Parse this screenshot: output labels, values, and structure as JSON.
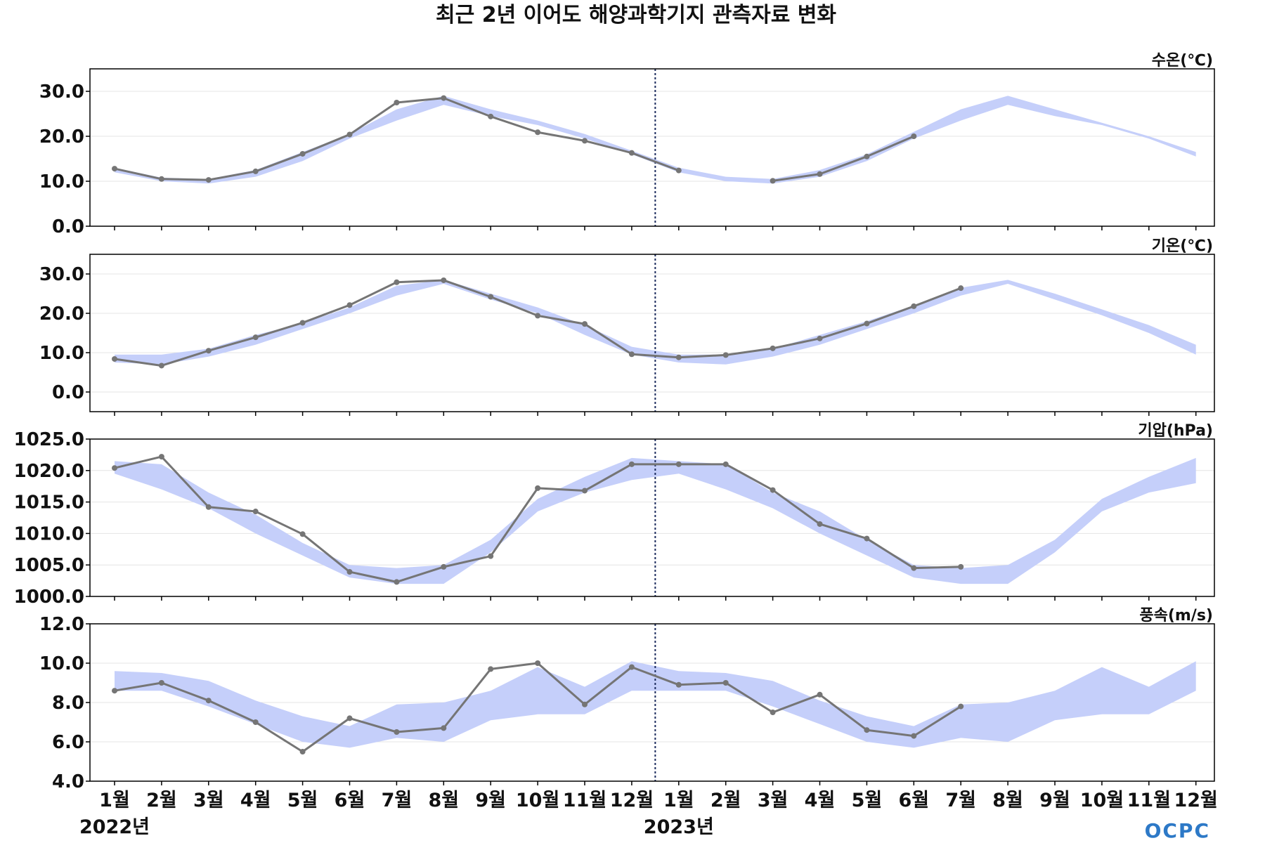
{
  "chart_data": {
    "type": "line",
    "title": "최근 2년 이어도 해양과학기지 관측자료 변화",
    "x": [
      "1월",
      "2월",
      "3월",
      "4월",
      "5월",
      "6월",
      "7월",
      "8월",
      "9월",
      "10월",
      "11월",
      "12월",
      "1월",
      "2월",
      "3월",
      "4월",
      "5월",
      "6월",
      "7월",
      "8월",
      "9월",
      "10월",
      "11월",
      "12월"
    ],
    "years": [
      {
        "label": "2022년",
        "at_index": 0
      },
      {
        "label": "2023년",
        "at_index": 12
      }
    ],
    "divider_between_index": [
      11,
      12
    ],
    "logo": "OCPC",
    "colors": {
      "band": "#c5cffa",
      "line": "#757575",
      "divider": "#1b2a5c",
      "grid": "#e4e4e4"
    },
    "panels": [
      {
        "unit": "수온(℃)",
        "ylim": [
          0,
          35
        ],
        "yticks": [
          0,
          10,
          20,
          30
        ],
        "tick_labels": [
          "0.0",
          "10.0",
          "20.0",
          "30.0"
        ],
        "band_min": [
          12.0,
          10.0,
          9.5,
          11.0,
          14.5,
          19.5,
          23.5,
          27.0,
          24.5,
          22.5,
          19.5,
          16.0,
          12.0,
          10.0,
          9.5,
          11.0,
          14.5,
          19.5,
          23.5,
          27.0,
          24.5,
          22.5,
          19.5,
          15.5
        ],
        "band_max": [
          13.0,
          10.8,
          10.5,
          12.5,
          16.5,
          20.5,
          26.0,
          29.0,
          26.0,
          23.5,
          20.5,
          16.8,
          13.0,
          11.0,
          10.5,
          12.5,
          16.0,
          21.0,
          26.0,
          29.0,
          26.0,
          23.0,
          20.0,
          16.5
        ],
        "observed": [
          12.8,
          10.5,
          10.3,
          12.2,
          16.1,
          20.4,
          27.5,
          28.5,
          24.4,
          20.9,
          19.0,
          16.3,
          12.4,
          null,
          10.1,
          11.6,
          15.5,
          20.0,
          null,
          null,
          null,
          null,
          null,
          null
        ]
      },
      {
        "unit": "기온(℃)",
        "ylim": [
          -5,
          35
        ],
        "yticks": [
          0,
          10,
          20,
          30
        ],
        "tick_labels": [
          "0.0",
          "10.0",
          "20.0",
          "30.0"
        ],
        "band_min": [
          7.5,
          7.0,
          9.0,
          12.0,
          16.0,
          20.0,
          24.5,
          27.5,
          23.5,
          20.0,
          14.5,
          9.5,
          7.5,
          7.0,
          9.0,
          12.0,
          16.0,
          20.0,
          24.5,
          27.5,
          23.5,
          19.5,
          15.0,
          9.5
        ],
        "band_max": [
          9.5,
          9.5,
          11.0,
          14.5,
          17.5,
          21.5,
          27.0,
          28.5,
          25.0,
          21.5,
          17.0,
          11.5,
          9.5,
          9.5,
          11.0,
          14.5,
          18.0,
          22.0,
          26.5,
          28.5,
          25.0,
          21.0,
          17.0,
          12.0
        ],
        "observed": [
          8.4,
          6.7,
          10.5,
          13.9,
          17.6,
          22.1,
          27.9,
          28.4,
          24.2,
          19.4,
          17.3,
          9.6,
          8.8,
          9.4,
          11.1,
          13.6,
          17.4,
          21.8,
          26.4,
          null,
          null,
          null,
          null,
          null
        ]
      },
      {
        "unit": "기압(hPa)",
        "ylim": [
          1000,
          1025
        ],
        "yticks": [
          1000,
          1005,
          1010,
          1015,
          1020,
          1025
        ],
        "tick_labels": [
          "1000.0",
          "1005.0",
          "1010.0",
          "1015.0",
          "1020.0",
          "1025.0"
        ],
        "band_min": [
          1019.5,
          1017.0,
          1014.0,
          1010.0,
          1006.5,
          1003.0,
          1002.0,
          1002.0,
          1007.0,
          1013.5,
          1016.5,
          1018.5,
          1019.5,
          1017.0,
          1014.0,
          1010.0,
          1006.5,
          1003.0,
          1002.0,
          1002.0,
          1007.0,
          1013.5,
          1016.5,
          1018.0
        ],
        "band_max": [
          1021.5,
          1021.0,
          1016.5,
          1013.0,
          1008.5,
          1005.0,
          1004.5,
          1005.0,
          1009.0,
          1015.5,
          1019.0,
          1022.0,
          1021.5,
          1021.0,
          1016.5,
          1013.5,
          1009.0,
          1005.0,
          1004.5,
          1005.0,
          1009.0,
          1015.5,
          1019.0,
          1022.0
        ],
        "observed": [
          1020.4,
          1022.2,
          1014.2,
          1013.5,
          1009.9,
          1003.9,
          1002.3,
          1004.7,
          1006.4,
          1017.2,
          1016.8,
          1021.0,
          1021.0,
          1021.0,
          1016.9,
          1011.5,
          1009.2,
          1004.5,
          1004.7,
          null,
          null,
          null,
          null,
          null
        ]
      },
      {
        "unit": "풍속(m/s)",
        "ylim": [
          4,
          12
        ],
        "yticks": [
          4,
          6,
          8,
          10,
          12
        ],
        "tick_labels": [
          "4.0",
          "6.0",
          "8.0",
          "10.0",
          "12.0"
        ],
        "band_min": [
          8.6,
          8.6,
          7.8,
          6.9,
          6.0,
          5.7,
          6.2,
          6.0,
          7.1,
          7.4,
          7.4,
          8.6,
          8.6,
          8.6,
          7.8,
          6.9,
          6.0,
          5.7,
          6.2,
          6.0,
          7.1,
          7.4,
          7.4,
          8.6
        ],
        "band_max": [
          9.6,
          9.5,
          9.1,
          8.1,
          7.3,
          6.8,
          7.9,
          8.0,
          8.6,
          9.8,
          8.8,
          10.1,
          9.6,
          9.5,
          9.1,
          8.1,
          7.3,
          6.8,
          7.9,
          8.0,
          8.6,
          9.8,
          8.8,
          10.1
        ],
        "observed": [
          8.6,
          9.0,
          8.1,
          7.0,
          5.5,
          7.2,
          6.5,
          6.7,
          9.7,
          10.0,
          7.9,
          9.8,
          8.9,
          9.0,
          7.5,
          8.4,
          6.6,
          6.3,
          7.8,
          null,
          null,
          null,
          null,
          null
        ]
      }
    ]
  }
}
